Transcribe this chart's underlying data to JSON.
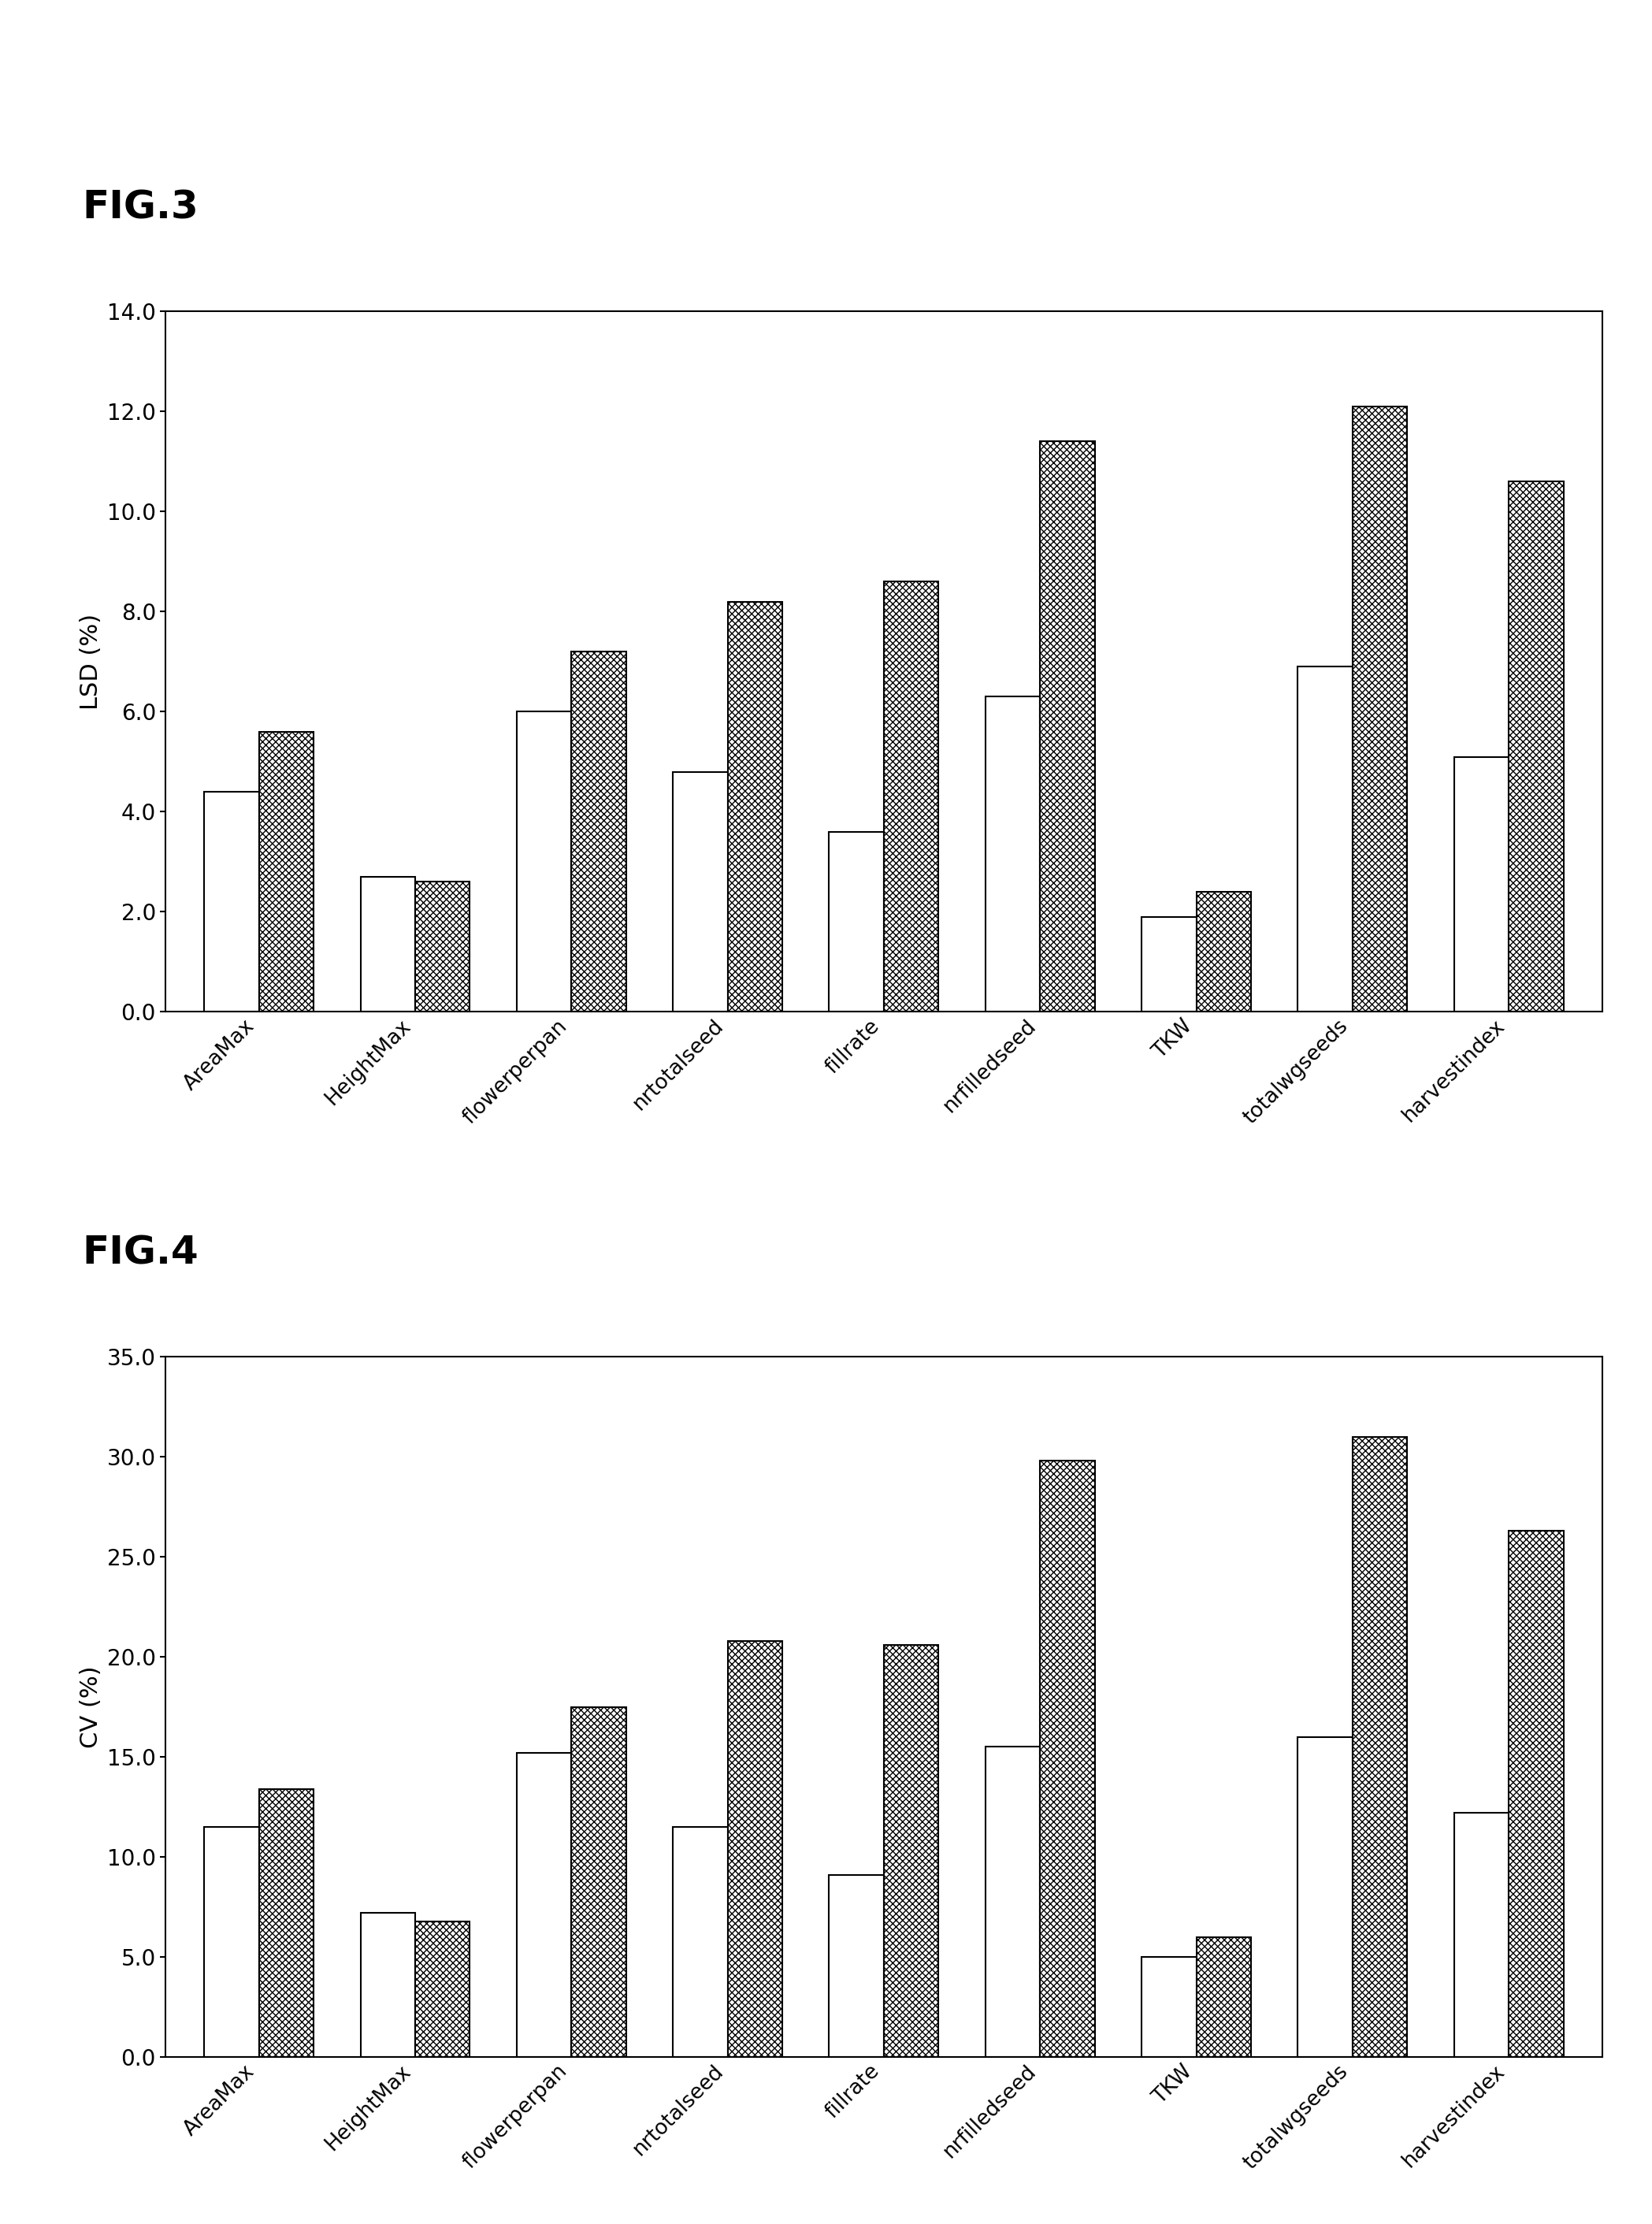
{
  "categories": [
    "AreaMax",
    "HeightMax",
    "flowerperpan",
    "nrtotalseed",
    "fillrate",
    "nrfilledseed",
    "TKW",
    "totalwgseeds",
    "harvestindex"
  ],
  "fig3_white": [
    4.4,
    2.7,
    6.0,
    4.8,
    3.6,
    6.3,
    1.9,
    6.9,
    5.1
  ],
  "fig3_hatched": [
    5.6,
    2.6,
    7.2,
    8.2,
    8.6,
    11.4,
    2.4,
    12.1,
    10.6
  ],
  "fig4_white": [
    11.5,
    7.2,
    15.2,
    11.5,
    9.1,
    15.5,
    5.0,
    16.0,
    12.2
  ],
  "fig4_hatched": [
    13.4,
    6.8,
    17.5,
    20.8,
    20.6,
    29.8,
    6.0,
    31.0,
    26.3
  ],
  "fig3_ylabel": "LSD (%)",
  "fig4_ylabel": "CV (%)",
  "fig3_ylim": [
    0,
    14.0
  ],
  "fig4_ylim": [
    0,
    35.0
  ],
  "fig3_yticks": [
    0.0,
    2.0,
    4.0,
    6.0,
    8.0,
    10.0,
    12.0,
    14.0
  ],
  "fig4_yticks": [
    0.0,
    5.0,
    10.0,
    15.0,
    20.0,
    25.0,
    30.0,
    35.0
  ],
  "fig3_label": "FIG.3",
  "fig4_label": "FIG.4",
  "bg_color": "#ffffff",
  "bar_white_color": "#ffffff",
  "bar_hatch_color": "#ffffff",
  "edge_color": "#000000",
  "bar_width": 0.35,
  "fig_label_fontsize": 36,
  "axis_label_fontsize": 22,
  "tick_fontsize": 20,
  "xtick_fontsize": 19
}
